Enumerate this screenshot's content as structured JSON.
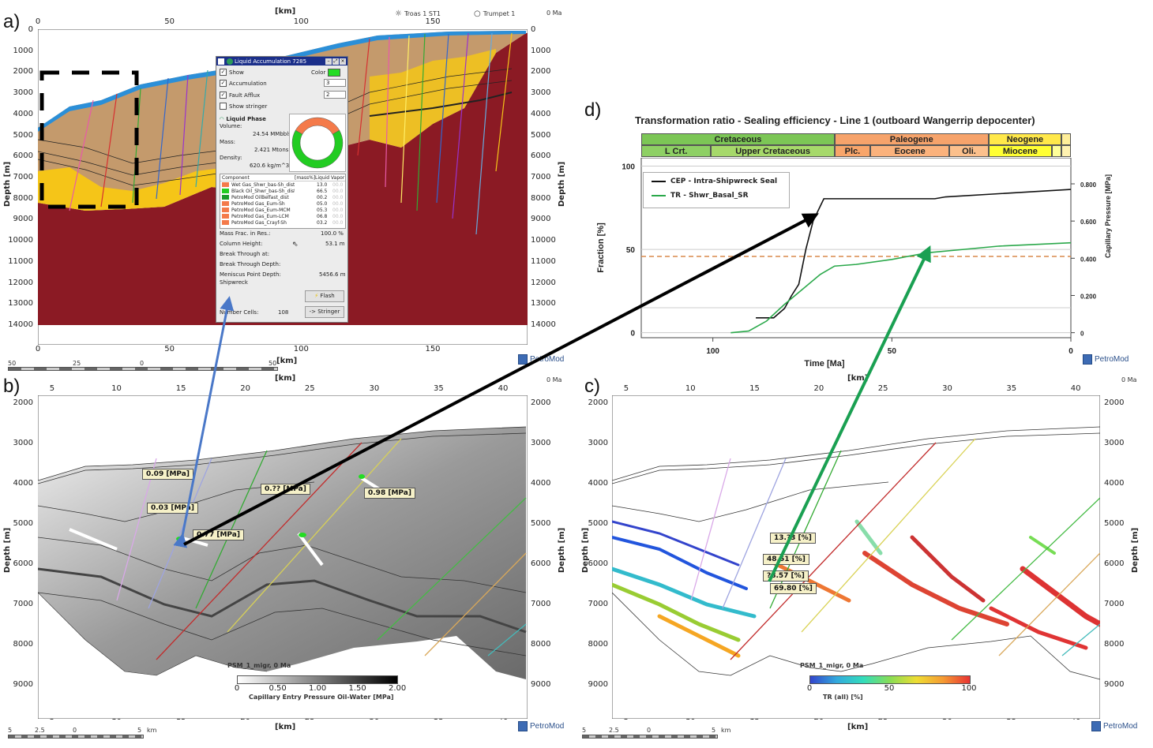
{
  "panels": {
    "a": {
      "letter": "a)",
      "x_unit": "[km]",
      "x_ticks": [
        "0",
        "50",
        "100",
        "150"
      ],
      "x_ticks_bottom": [
        "0",
        "50",
        "100",
        "150"
      ],
      "y_ticks": [
        "0",
        "1000",
        "2000",
        "3000",
        "4000",
        "5000",
        "6000",
        "7000",
        "8000",
        "9000",
        "10000",
        "11000",
        "12000",
        "13000",
        "14000"
      ],
      "y_label": "Depth [m]",
      "age": "0 Ma",
      "wells": [
        {
          "name": "Troas 1 ST1",
          "icon": "sun-icon"
        },
        {
          "name": "Trumpet 1",
          "icon": "circle-icon"
        }
      ],
      "scale_bar": [
        "50",
        "25",
        "0",
        "50"
      ],
      "scale_unit": "[km]",
      "logo": "PetroMod",
      "colors": {
        "basement": "#8b1a24",
        "water": "#2b8fd8",
        "sand": "#f5c518",
        "shale": "#c49a6c"
      }
    },
    "b": {
      "letter": "b)",
      "x_unit": "[km]",
      "x_ticks": [
        "5",
        "10",
        "15",
        "20",
        "25",
        "30",
        "35",
        "40"
      ],
      "y_ticks": [
        "2000",
        "3000",
        "4000",
        "5000",
        "6000",
        "7000",
        "8000",
        "9000"
      ],
      "y_label": "Depth [m]",
      "age": "0 Ma",
      "callouts": [
        "0.09 [MPa]",
        "0.03 [MPa]",
        "0.77 [MPa]",
        "0.?? [MPa]",
        "0.98 [MPa]"
      ],
      "legend_title": "PSM_1_migr, 0 Ma",
      "legend_ticks": [
        "0",
        "0.50",
        "1.00",
        "1.50",
        "2.00"
      ],
      "legend_label": "Capillary Entry Pressure Oil-Water [MPa]",
      "scale_bar": [
        "5",
        "2.5",
        "0",
        "5"
      ],
      "scale_unit": "km",
      "logo": "PetroMod"
    },
    "c": {
      "letter": "c)",
      "x_unit": "[km]",
      "x_ticks": [
        "5",
        "10",
        "15",
        "20",
        "25",
        "30",
        "35",
        "40"
      ],
      "y_ticks": [
        "2000",
        "3000",
        "4000",
        "5000",
        "6000",
        "7000",
        "8000",
        "9000"
      ],
      "y_label": "Depth [m]",
      "age": "0 Ma",
      "callouts": [
        "13.?3 [%]",
        "48.51 [%]",
        "?8.57 [%]",
        "69.80 [%]"
      ],
      "legend_title": "PSM_1_migr, 0 Ma",
      "legend_ticks": [
        "0",
        "50",
        "100"
      ],
      "legend_label": "TR (all) [%]",
      "scale_bar": [
        "5",
        "2.5",
        "0",
        "5"
      ],
      "scale_unit": "km",
      "logo": "PetroMod"
    },
    "d": {
      "letter": "d)",
      "logo": "PetroMod"
    }
  },
  "dialog": {
    "title": "Liquid Accumulation 7285",
    "show_label": "Show",
    "show_checked": true,
    "color_label": "Color",
    "color": "#22dd22",
    "accumulation_label": "Accumulation",
    "accumulation_checked": true,
    "accumulation_value": "3",
    "fault_afflux_label": "Fault Afflux",
    "fault_afflux_checked": true,
    "fault_afflux_value": "2",
    "show_stringer_label": "Show stringer",
    "show_stringer_checked": false,
    "phase_title": "Liquid Phase",
    "volume_label": "Volume:",
    "volume_value": "24.54 MMbbls",
    "mass_label": "Mass:",
    "mass_value": "2.421 Mtons",
    "density_label": "Density:",
    "density_value": "620.6 kg/m^3",
    "donut": [
      {
        "name": "gas",
        "fraction": 0.335,
        "color": "#f47a4a"
      },
      {
        "name": "oil",
        "fraction": 0.665,
        "color": "#22cc22"
      }
    ],
    "table_headers": {
      "component": "Component",
      "mass": "[mass%]",
      "liquid": "Liquid",
      "vapor": "Vapor"
    },
    "components": [
      {
        "name": "Wet Gas_Shwr_bas-Sh_dist",
        "liquid": "13.0",
        "vapor": "00.0",
        "color": "#f47a4a"
      },
      {
        "name": "Black Oil_Shwr_bas-Sh_dist",
        "liquid": "66.5",
        "vapor": "00.0",
        "color": "#22cc22"
      },
      {
        "name": "PetroMod OilBelfast_dist",
        "liquid": "00.2",
        "vapor": "00.0",
        "color": "#1a9a2a"
      },
      {
        "name": "PetroMod Gas_Eum-Sh",
        "liquid": "05.0",
        "vapor": "00.0",
        "color": "#f47a4a"
      },
      {
        "name": "PetroMod Gas_Eum-MCM",
        "liquid": "05.3",
        "vapor": "00.0",
        "color": "#f47a4a"
      },
      {
        "name": "PetroMod Gas_Eum-LCM",
        "liquid": "06.8",
        "vapor": "00.0",
        "color": "#f47a4a"
      },
      {
        "name": "PetroMod Gas_Crayf-Sh",
        "liquid": "03.2",
        "vapor": "00.0",
        "color": "#f47a4a"
      }
    ],
    "mass_frac_label": "Mass Frac. in Res.:",
    "mass_frac_value": "100.0 %",
    "column_height_label": "Column Height:",
    "column_height_value": "53.1 m",
    "break_through_label": "Break Through at:",
    "break_through_depth_label": "Break Through Depth:",
    "meniscus_label": "Meniscus Point Depth:",
    "meniscus_value": "5456.6 m",
    "formation": "Shipwreck",
    "flash_button": "Flash",
    "cells_label": "Number Cells:",
    "cells_value": "108",
    "stringer_button": "-> Stringer"
  },
  "chart_data": {
    "type": "line",
    "title": "Transformation ratio - Sealing efficiency - Line 1 (outboard Wangerrip depocenter)",
    "xlabel": "Time [Ma]",
    "ylabel": "Fraction [%]",
    "y2label": "Capillary Pressure [MPa]",
    "xlim": [
      120,
      0
    ],
    "ylim": [
      -3,
      105
    ],
    "y2lim": [
      -0.027,
      0.94
    ],
    "x_ticks": [
      "100",
      "50",
      "0"
    ],
    "y_ticks": [
      "0",
      "50",
      "100"
    ],
    "y2_ticks": [
      "0",
      "0.200",
      "0.400",
      "0.600",
      "0.800"
    ],
    "grid": true,
    "legend_position": "top-left",
    "threshold": {
      "axis": "y2",
      "value": 0.41,
      "color": "#d9884a",
      "style": "dashed"
    },
    "eras_top": [
      {
        "label": "Cretaceous",
        "from": 120,
        "to": 66,
        "color": "#7cc656"
      },
      {
        "label": "Paleogene",
        "from": 66,
        "to": 23,
        "color": "#f6a36b"
      },
      {
        "label": "Neogene",
        "from": 23,
        "to": 2.6,
        "color": "#ffe84a"
      },
      {
        "label": "",
        "from": 2.6,
        "to": 0,
        "color": "#ffee99"
      }
    ],
    "eras_bottom": [
      {
        "label": "L Crt.",
        "from": 120,
        "to": 100.5,
        "color": "#8ed064"
      },
      {
        "label": "Upper Cretaceous",
        "from": 100.5,
        "to": 66,
        "color": "#a6d96a"
      },
      {
        "label": "Plc.",
        "from": 66,
        "to": 56,
        "color": "#f8a56a"
      },
      {
        "label": "Eocene",
        "from": 56,
        "to": 33.9,
        "color": "#fbb27c"
      },
      {
        "label": "Oli.",
        "from": 33.9,
        "to": 23,
        "color": "#fcc08c"
      },
      {
        "label": "Miocene",
        "from": 23,
        "to": 5.3,
        "color": "#ffff33"
      },
      {
        "label": "",
        "from": 5.3,
        "to": 2.6,
        "color": "#ffff99"
      },
      {
        "label": "",
        "from": 2.6,
        "to": 0,
        "color": "#fff2b0"
      }
    ],
    "series": [
      {
        "name": "CEP - Intra-Shipwreck Seal",
        "axis": "y2",
        "color": "#111111",
        "x": [
          88,
          84,
          83,
          80,
          78,
          76,
          74,
          72,
          69,
          40,
          38,
          35,
          0
        ],
        "y": [
          0.08,
          0.08,
          0.08,
          0.13,
          0.2,
          0.26,
          0.45,
          0.6,
          0.72,
          0.72,
          0.72,
          0.73,
          0.77
        ]
      },
      {
        "name": "TR - Shwr_Basal_SR",
        "axis": "y",
        "color": "#2aa84a",
        "x": [
          95,
          90,
          85,
          80,
          75,
          70,
          66,
          60,
          50,
          40,
          30,
          20,
          10,
          0
        ],
        "y": [
          0,
          1,
          7,
          17,
          26,
          35,
          40,
          41,
          44,
          48,
          50,
          52,
          53,
          54
        ]
      }
    ]
  }
}
